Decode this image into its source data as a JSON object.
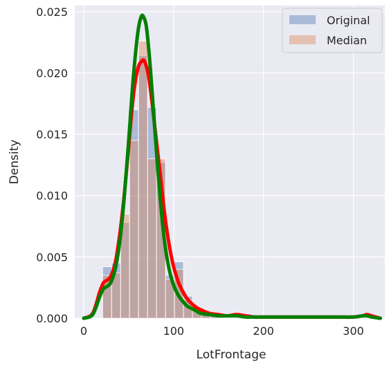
{
  "chart_data": {
    "type": "histogram",
    "xlabel": "LotFrontage",
    "ylabel": "Density",
    "xlim": [
      -10,
      335
    ],
    "ylim": [
      0,
      0.0255
    ],
    "xticks": [
      0,
      100,
      200,
      300
    ],
    "yticks": [
      0.0,
      0.005,
      0.01,
      0.015,
      0.02,
      0.025
    ],
    "xtick_labels": [
      "0",
      "100",
      "200",
      "300"
    ],
    "ytick_labels": [
      "0.000",
      "0.005",
      "0.010",
      "0.015",
      "0.020",
      "0.025"
    ],
    "grid": true,
    "legend_position": "top-right",
    "bin_width": 10,
    "bin_starts": [
      21,
      31,
      41,
      51,
      61,
      71,
      81,
      91,
      101,
      111,
      121,
      131,
      141
    ],
    "series": [
      {
        "name": "Original",
        "kind": "hist",
        "color": "#4c72b0",
        "values": [
          0.0042,
          0.0045,
          0.0078,
          0.017,
          0.0214,
          0.0172,
          0.0127,
          0.0035,
          0.0046,
          0.0018,
          0.0008,
          0.0004,
          0.0002
        ]
      },
      {
        "name": "Median",
        "kind": "hist",
        "color": "#dd8452",
        "values": [
          0.0035,
          0.0037,
          0.0085,
          0.0145,
          0.0226,
          0.013,
          0.013,
          0.0032,
          0.004,
          0.0015,
          0.0007,
          0.0004,
          0.0002
        ]
      },
      {
        "kind": "kde",
        "color": "#ff0000",
        "x": [
          0,
          10,
          18,
          22,
          26,
          30,
          35,
          40,
          45,
          50,
          55,
          60,
          65,
          68,
          72,
          76,
          80,
          85,
          90,
          95,
          100,
          105,
          110,
          115,
          120,
          125,
          130,
          140,
          150,
          160,
          170,
          180,
          190,
          200,
          220,
          240,
          260,
          280,
          300,
          310,
          315,
          320,
          330
        ],
        "y": [
          0.0,
          0.0004,
          0.0022,
          0.0029,
          0.0031,
          0.0034,
          0.0045,
          0.0068,
          0.01,
          0.014,
          0.018,
          0.0203,
          0.021,
          0.0209,
          0.0198,
          0.0176,
          0.015,
          0.0118,
          0.0085,
          0.006,
          0.0042,
          0.003,
          0.0022,
          0.0016,
          0.0012,
          0.0009,
          0.0007,
          0.0004,
          0.0003,
          0.0002,
          0.0003,
          0.0002,
          0.0001,
          0.0001,
          0.0001,
          0.0001,
          0.0001,
          0.0001,
          0.0001,
          0.0002,
          0.0003,
          0.0002,
          0.0
        ]
      },
      {
        "kind": "kde",
        "color": "#008000",
        "x": [
          0,
          10,
          18,
          22,
          26,
          30,
          35,
          40,
          45,
          50,
          55,
          60,
          64,
          67,
          70,
          74,
          78,
          82,
          86,
          90,
          95,
          100,
          105,
          110,
          115,
          120,
          125,
          130,
          140,
          150,
          160,
          170,
          180,
          190,
          200,
          220,
          240,
          260,
          280,
          300,
          310,
          315,
          320,
          330
        ],
        "y": [
          0.0,
          0.0003,
          0.0018,
          0.0024,
          0.0026,
          0.0029,
          0.004,
          0.0062,
          0.0098,
          0.0145,
          0.0195,
          0.0232,
          0.0246,
          0.0245,
          0.0236,
          0.0205,
          0.0165,
          0.0125,
          0.009,
          0.0062,
          0.004,
          0.0027,
          0.0019,
          0.0014,
          0.001,
          0.0008,
          0.0006,
          0.0004,
          0.0003,
          0.0002,
          0.0002,
          0.0002,
          0.0001,
          0.0001,
          0.0001,
          0.0001,
          0.0001,
          0.0001,
          0.0001,
          0.0001,
          0.0002,
          0.0002,
          0.0001,
          0.0
        ]
      }
    ]
  }
}
